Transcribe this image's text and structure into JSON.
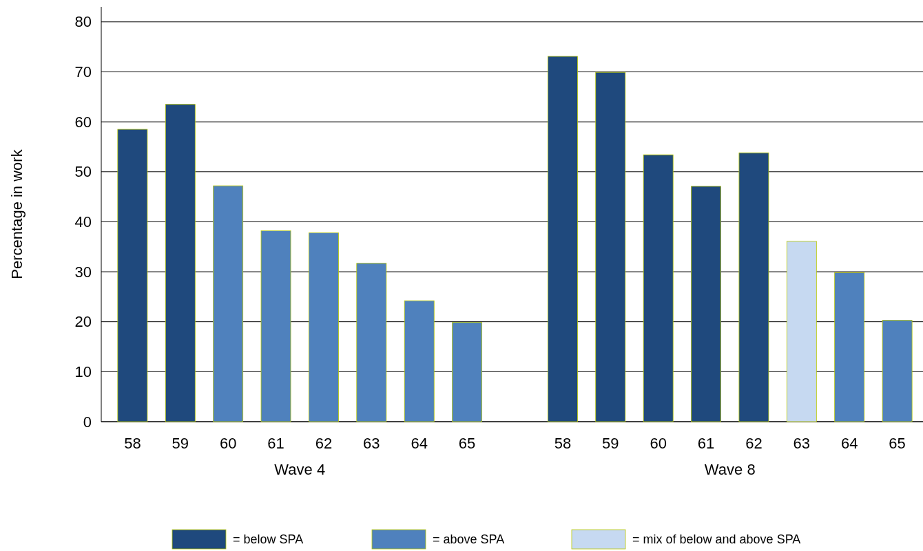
{
  "chart_data": {
    "type": "bar",
    "ylabel": "Percentage in work",
    "categories": [
      "58",
      "59",
      "60",
      "61",
      "62",
      "63",
      "64",
      "65",
      null,
      "58",
      "59",
      "60",
      "61",
      "62",
      "63",
      "64",
      "65"
    ],
    "series": [
      {
        "name": "= below SPA",
        "color": "#1f497d",
        "values": [
          58.5,
          63.5,
          null,
          null,
          null,
          null,
          null,
          null,
          null,
          73.1,
          69.9,
          53.4,
          47.1,
          53.8,
          null,
          null,
          null
        ]
      },
      {
        "name": "= above SPA",
        "color": "#4f81bd",
        "values": [
          null,
          null,
          47.2,
          38.2,
          37.8,
          31.7,
          24.2,
          19.9,
          null,
          null,
          null,
          null,
          null,
          null,
          null,
          29.8,
          20.3
        ]
      },
      {
        "name": "= mix of below and above SPA",
        "color": "#c6d9f1",
        "values": [
          null,
          null,
          null,
          null,
          null,
          null,
          null,
          null,
          null,
          null,
          null,
          null,
          null,
          null,
          36.1,
          null,
          null
        ]
      }
    ],
    "annotations": [
      "Wave 4",
      "Wave 8"
    ],
    "ylim": [
      0,
      83
    ],
    "yticks": [
      0,
      10,
      20,
      30,
      40,
      50,
      60,
      70,
      80
    ],
    "grid": "y",
    "legend": "bottom"
  }
}
